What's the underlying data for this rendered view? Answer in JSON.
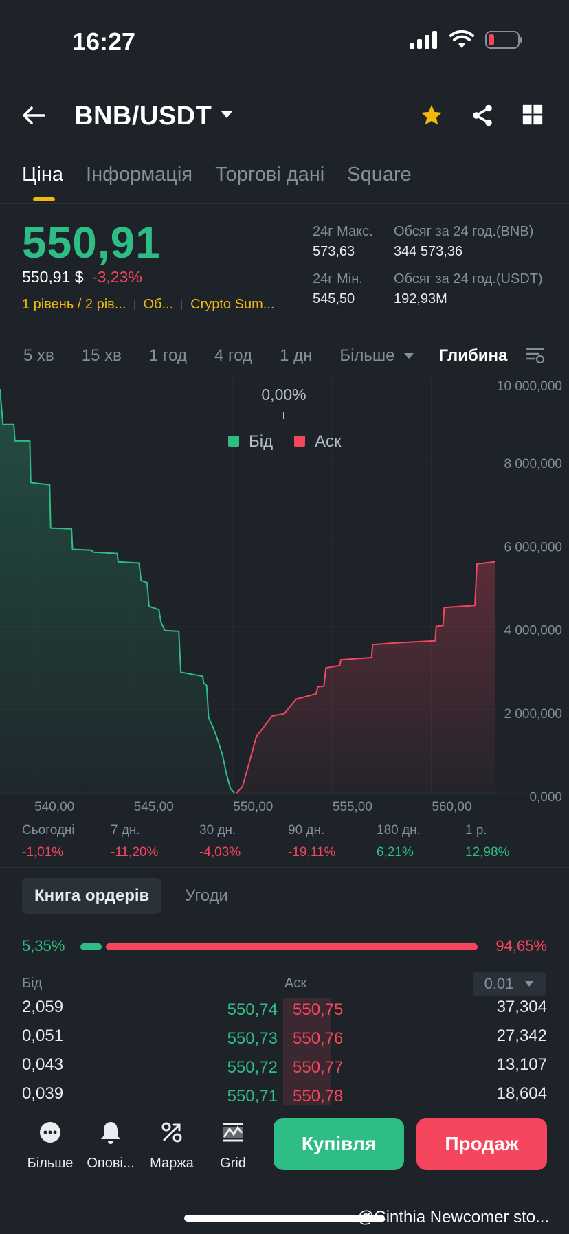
{
  "status": {
    "time": "16:27"
  },
  "header": {
    "pair": "BNB/USDT"
  },
  "tabs": [
    {
      "label": "Ціна",
      "active": true
    },
    {
      "label": "Інформація"
    },
    {
      "label": "Торгові дані"
    },
    {
      "label": "Square"
    }
  ],
  "price": {
    "last": "550,91",
    "usd": "550,91 $",
    "change": "-3,23%",
    "tags": [
      "1 рівень / 2 рів...",
      "Об...",
      "Crypto Sum..."
    ]
  },
  "stats": {
    "high_label": "24г Макс.",
    "high": "573,63",
    "low_label": "24г Мін.",
    "low": "545,50",
    "vol_bnb_label": "Обсяг за 24 год.(BNB)",
    "vol_bnb": "344 573,36",
    "vol_usdt_label": "Обсяг за 24 год.(USDT)",
    "vol_usdt": "192,93M"
  },
  "intervals": [
    "5 хв",
    "15 хв",
    "1 год",
    "4 год",
    "1 дн",
    "Більше",
    "Глибина"
  ],
  "chart_data": {
    "type": "area",
    "title": "",
    "mid_label": "0,00%",
    "legend": [
      "Бід",
      "Аск"
    ],
    "x_ticks": [
      "540,00",
      "545,00",
      "550,00",
      "555,00",
      "560,00"
    ],
    "y_ticks": [
      "10 000,000",
      "8 000,000",
      "6 000,000",
      "4 000,000",
      "2 000,000",
      "0,000"
    ],
    "xlim": [
      538.3,
      563.2
    ],
    "ylim": [
      0,
      10000000
    ],
    "series": [
      {
        "name": "Бід",
        "color": "#2ebd85",
        "points": [
          [
            538.3,
            9700000
          ],
          [
            538.45,
            8850000
          ],
          [
            539.0,
            8850000
          ],
          [
            539.05,
            8450000
          ],
          [
            539.8,
            8450000
          ],
          [
            539.85,
            7450000
          ],
          [
            540.8,
            7400000
          ],
          [
            540.85,
            6360000
          ],
          [
            541.9,
            6340000
          ],
          [
            541.95,
            5850000
          ],
          [
            542.9,
            5830000
          ],
          [
            543.0,
            5780000
          ],
          [
            544.2,
            5750000
          ],
          [
            544.25,
            5550000
          ],
          [
            545.3,
            5520000
          ],
          [
            545.4,
            5100000
          ],
          [
            545.7,
            5050000
          ],
          [
            545.8,
            4480000
          ],
          [
            546.3,
            4400000
          ],
          [
            546.4,
            4100000
          ],
          [
            546.6,
            3900000
          ],
          [
            547.3,
            3880000
          ],
          [
            547.4,
            2900000
          ],
          [
            548.5,
            2800000
          ],
          [
            548.55,
            2640000
          ],
          [
            548.7,
            2580000
          ],
          [
            548.8,
            1800000
          ],
          [
            549.0,
            1600000
          ],
          [
            549.2,
            1350000
          ],
          [
            549.5,
            900000
          ],
          [
            549.7,
            450000
          ],
          [
            549.9,
            100000
          ],
          [
            550.1,
            0
          ]
        ]
      },
      {
        "name": "Аск",
        "color": "#f6465d",
        "points": [
          [
            550.2,
            0
          ],
          [
            550.5,
            150000
          ],
          [
            550.8,
            650000
          ],
          [
            551.2,
            1350000
          ],
          [
            551.6,
            1600000
          ],
          [
            552.0,
            1850000
          ],
          [
            552.6,
            1900000
          ],
          [
            553.2,
            2250000
          ],
          [
            554.2,
            2380000
          ],
          [
            554.3,
            2550000
          ],
          [
            554.6,
            2560000
          ],
          [
            554.7,
            3000000
          ],
          [
            555.4,
            3060000
          ],
          [
            555.45,
            3200000
          ],
          [
            557.0,
            3250000
          ],
          [
            557.05,
            3560000
          ],
          [
            558.2,
            3600000
          ],
          [
            560.2,
            3650000
          ],
          [
            560.25,
            4000000
          ],
          [
            560.6,
            4020000
          ],
          [
            560.65,
            4450000
          ],
          [
            562.2,
            4500000
          ],
          [
            562.3,
            5500000
          ],
          [
            563.2,
            5550000
          ]
        ]
      }
    ]
  },
  "performance": [
    {
      "label": "Сьогодні",
      "value": "-1,01%",
      "sign": "neg"
    },
    {
      "label": "7 дн.",
      "value": "-11,20%",
      "sign": "neg"
    },
    {
      "label": "30 дн.",
      "value": "-4,03%",
      "sign": "neg"
    },
    {
      "label": "90 дн.",
      "value": "-19,11%",
      "sign": "neg"
    },
    {
      "label": "180 дн.",
      "value": "6,21%",
      "sign": "pos"
    },
    {
      "label": "1 р.",
      "value": "12,98%",
      "sign": "pos"
    }
  ],
  "orderbook": {
    "tab_active": "Книга ордерів",
    "tab_other": "Угоди",
    "bid_pct": "5,35%",
    "ask_pct": "94,65%",
    "bid_ratio": 0.0535,
    "bid_header": "Бід",
    "ask_header": "Аск",
    "precision": "0.01",
    "rows": [
      {
        "bid_qty": "2,059",
        "bid_price": "550,74",
        "ask_price": "550,75",
        "ask_qty": "37,304"
      },
      {
        "bid_qty": "0,051",
        "bid_price": "550,73",
        "ask_price": "550,76",
        "ask_qty": "27,342"
      },
      {
        "bid_qty": "0,043",
        "bid_price": "550,72",
        "ask_price": "550,77",
        "ask_qty": "13,107"
      },
      {
        "bid_qty": "0,039",
        "bid_price": "550,71",
        "ask_price": "550,78",
        "ask_qty": "18,604"
      }
    ]
  },
  "bottom": {
    "more": "Більше",
    "alerts": "Опові...",
    "margin": "Маржа",
    "grid": "Grid",
    "buy": "Купівля",
    "sell": "Продаж"
  },
  "watermark": "@Cinthia Newcomer sto..."
}
